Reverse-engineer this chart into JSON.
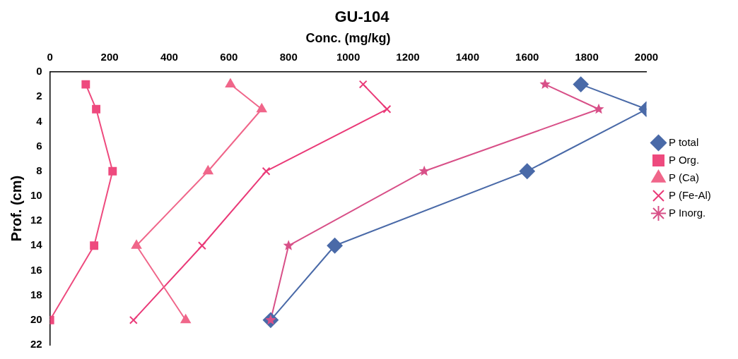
{
  "chart_data": {
    "type": "line",
    "title": "GU-104",
    "xlabel": "Conc. (mg/kg)",
    "ylabel": "Prof. (cm)",
    "xlim": [
      0,
      2000
    ],
    "xticks": [
      0,
      200,
      400,
      600,
      800,
      1000,
      1200,
      1400,
      1600,
      1800,
      2000
    ],
    "ylim": [
      22,
      0
    ],
    "yticks": [
      0,
      2,
      4,
      6,
      8,
      10,
      12,
      14,
      16,
      18,
      20,
      22
    ],
    "grid": false,
    "legend": "right",
    "series": [
      {
        "name": "P total",
        "color": "#4a6aa8",
        "marker": "diamond",
        "x": [
          1780,
          2000,
          1600,
          955,
          740
        ],
        "values": [
          1,
          3,
          8,
          14,
          20
        ]
      },
      {
        "name": "P Org.",
        "color": "#ee4a7e",
        "marker": "square",
        "x": [
          120,
          155,
          210,
          148,
          0
        ],
        "values": [
          1,
          3,
          8,
          14,
          20
        ]
      },
      {
        "name": "P (Ca)",
        "color": "#f0668a",
        "marker": "triangle",
        "x": [
          605,
          710,
          530,
          290,
          455
        ],
        "values": [
          1,
          3,
          8,
          14,
          20
        ]
      },
      {
        "name": "P (Fe-Al)",
        "color": "#ea3a78",
        "marker": "cross",
        "x": [
          1050,
          1130,
          725,
          510,
          280
        ],
        "values": [
          1,
          3,
          8,
          14,
          20
        ]
      },
      {
        "name": "P Inorg.",
        "color": "#d85088",
        "marker": "star",
        "x": [
          1660,
          1840,
          1255,
          800,
          740
        ],
        "values": [
          1,
          3,
          8,
          14,
          20
        ]
      }
    ]
  }
}
